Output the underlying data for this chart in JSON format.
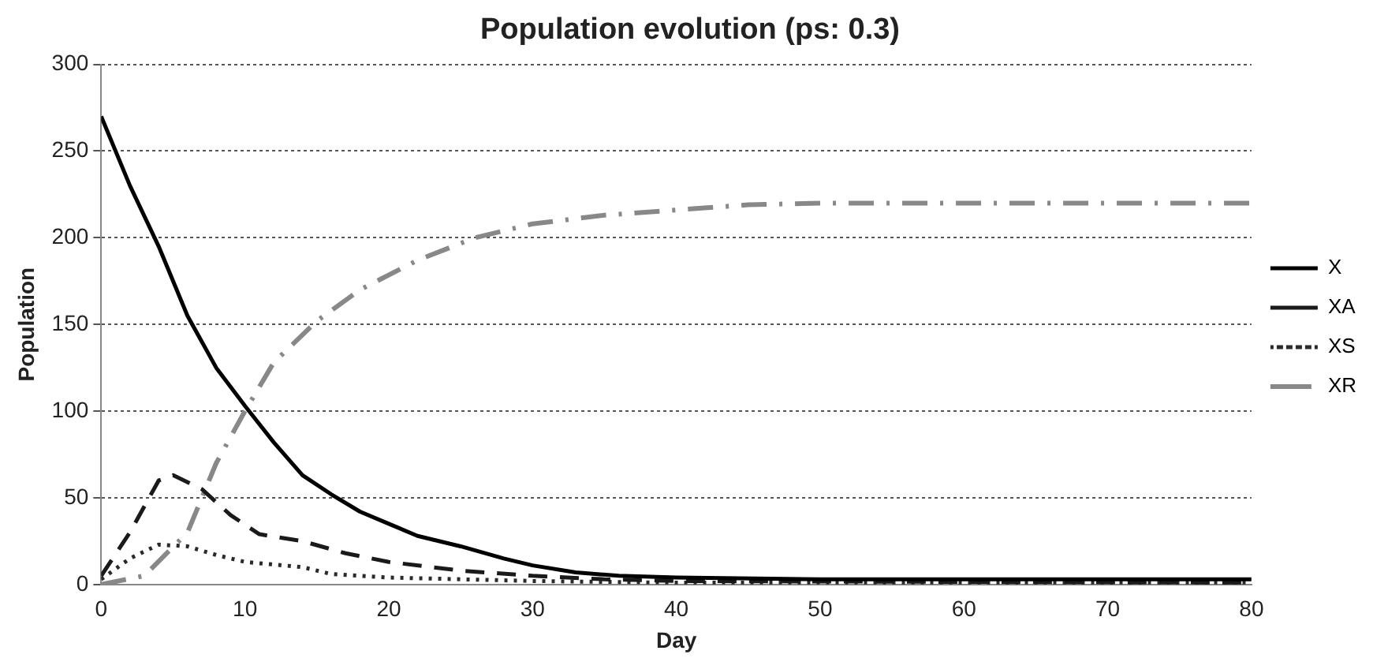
{
  "chart_data": {
    "type": "line",
    "title": "Population evolution (ps: 0.3)",
    "xlabel": "Day",
    "ylabel": "Population",
    "xlim": [
      0,
      80
    ],
    "xticks": [
      0,
      10,
      20,
      30,
      40,
      50,
      60,
      70,
      80
    ],
    "ylim": [
      0,
      300
    ],
    "yticks": [
      0,
      50,
      100,
      150,
      200,
      250,
      300
    ],
    "grid": "y",
    "legend": "right",
    "marker": "none",
    "series": [
      {
        "name": "X",
        "color": "#000000",
        "line_style": "solid",
        "x": [
          0,
          2,
          4,
          6,
          8,
          10,
          12,
          14,
          16,
          18,
          20,
          22,
          25,
          28,
          30,
          33,
          36,
          40,
          50,
          80
        ],
        "values": [
          270,
          230,
          195,
          155,
          125,
          103,
          82,
          63,
          52,
          42,
          35,
          28,
          22,
          15,
          11,
          7,
          5,
          4,
          3,
          3
        ]
      },
      {
        "name": "XA",
        "color": "#1a1a1a",
        "line_style": "dashed",
        "x": [
          0,
          2,
          4,
          5,
          7,
          9,
          11,
          14,
          17,
          20,
          25,
          30,
          35,
          40,
          80
        ],
        "values": [
          5,
          30,
          60,
          63,
          55,
          40,
          29,
          25,
          18,
          13,
          8,
          5,
          3,
          2,
          1
        ]
      },
      {
        "name": "XS",
        "color": "#2a2a2a",
        "line_style": "dotted",
        "x": [
          0,
          2,
          4,
          6,
          8,
          10,
          14,
          16,
          20,
          30,
          40,
          80
        ],
        "values": [
          3,
          15,
          23,
          22,
          17,
          13,
          10,
          6,
          4,
          2,
          1,
          1
        ]
      },
      {
        "name": "XR",
        "color": "#888888",
        "line_style": "dashdot",
        "x": [
          0,
          3,
          6,
          8,
          10,
          12,
          15,
          18,
          22,
          26,
          30,
          35,
          40,
          45,
          50,
          80
        ],
        "values": [
          0,
          5,
          30,
          70,
          100,
          128,
          152,
          170,
          187,
          200,
          208,
          213,
          216,
          219,
          220,
          220
        ]
      }
    ]
  }
}
